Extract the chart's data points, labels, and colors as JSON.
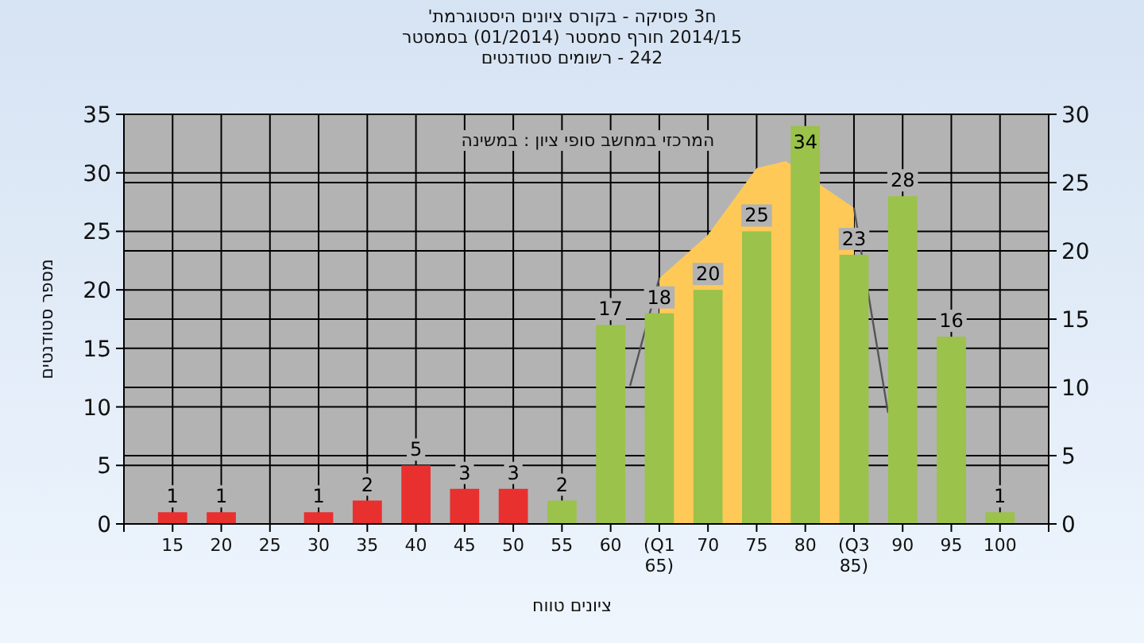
{
  "chart_data": {
    "type": "bar",
    "title": "ח3 פיסיקה - בקורס ציונים היסטוגרמת'",
    "subtitle": "2014/15 חורף סמסטר (01/2014) בסמסטר",
    "annotations": [
      "242 - רשומים סטודנטים",
      "המרכזי במחשב סופי ציון : במשינה"
    ],
    "xlabel": "ציונים טווח",
    "ylabel": "מספר סטודנטים",
    "xlim": [
      10,
      105
    ],
    "xticks": [
      15,
      20,
      25,
      30,
      35,
      40,
      45,
      50,
      55,
      60,
      {
        "value": 65,
        "label": "(Q1 65)"
      },
      70,
      75,
      80,
      {
        "value": 85,
        "label": "(Q3 85)"
      },
      90,
      95,
      100
    ],
    "ylim": [
      0,
      35
    ],
    "yticks": [
      0,
      5,
      10,
      15,
      20,
      25,
      30,
      35
    ],
    "y2lim": [
      0,
      30
    ],
    "y2ticks": [
      0,
      5,
      10,
      15,
      20,
      25,
      30
    ],
    "grid": true,
    "series": [
      {
        "type": "area",
        "color": "#ffc957",
        "x": [
          65,
          70,
          75,
          78,
          85
        ],
        "values": [
          21,
          24.7,
          30.4,
          31,
          27
        ]
      },
      {
        "type": "line",
        "color": "#555555",
        "x": [
          62,
          65,
          70,
          85,
          88.5
        ],
        "values": [
          11.8,
          21,
          null,
          27,
          9.5
        ]
      },
      {
        "x": [
          15,
          20,
          25,
          30,
          35,
          40,
          45,
          50,
          55,
          60,
          65,
          70,
          75,
          80,
          85,
          90,
          95,
          100
        ],
        "values": [
          1,
          1,
          0,
          1,
          2,
          5,
          3,
          3,
          2,
          17,
          18,
          20,
          25,
          34,
          23,
          28,
          16,
          1
        ],
        "value_labels": [
          "1",
          "1",
          null,
          "1",
          "2",
          "5",
          "3",
          "3",
          "2",
          "17",
          "18",
          "20",
          "25",
          "34",
          "23",
          "28",
          "16",
          "1"
        ],
        "colors": [
          "#e8302e",
          "#e8302e",
          "#e8302e",
          "#e8302e",
          "#e8302e",
          "#e8302e",
          "#e8302e",
          "#e8302e",
          "#9bc24a",
          "#9bc24a",
          "#9bc24a",
          "#9bc24a",
          "#9bc24a",
          "#9bc24a",
          "#9bc24a",
          "#9bc24a",
          "#9bc24a",
          "#9bc24a"
        ]
      }
    ]
  }
}
